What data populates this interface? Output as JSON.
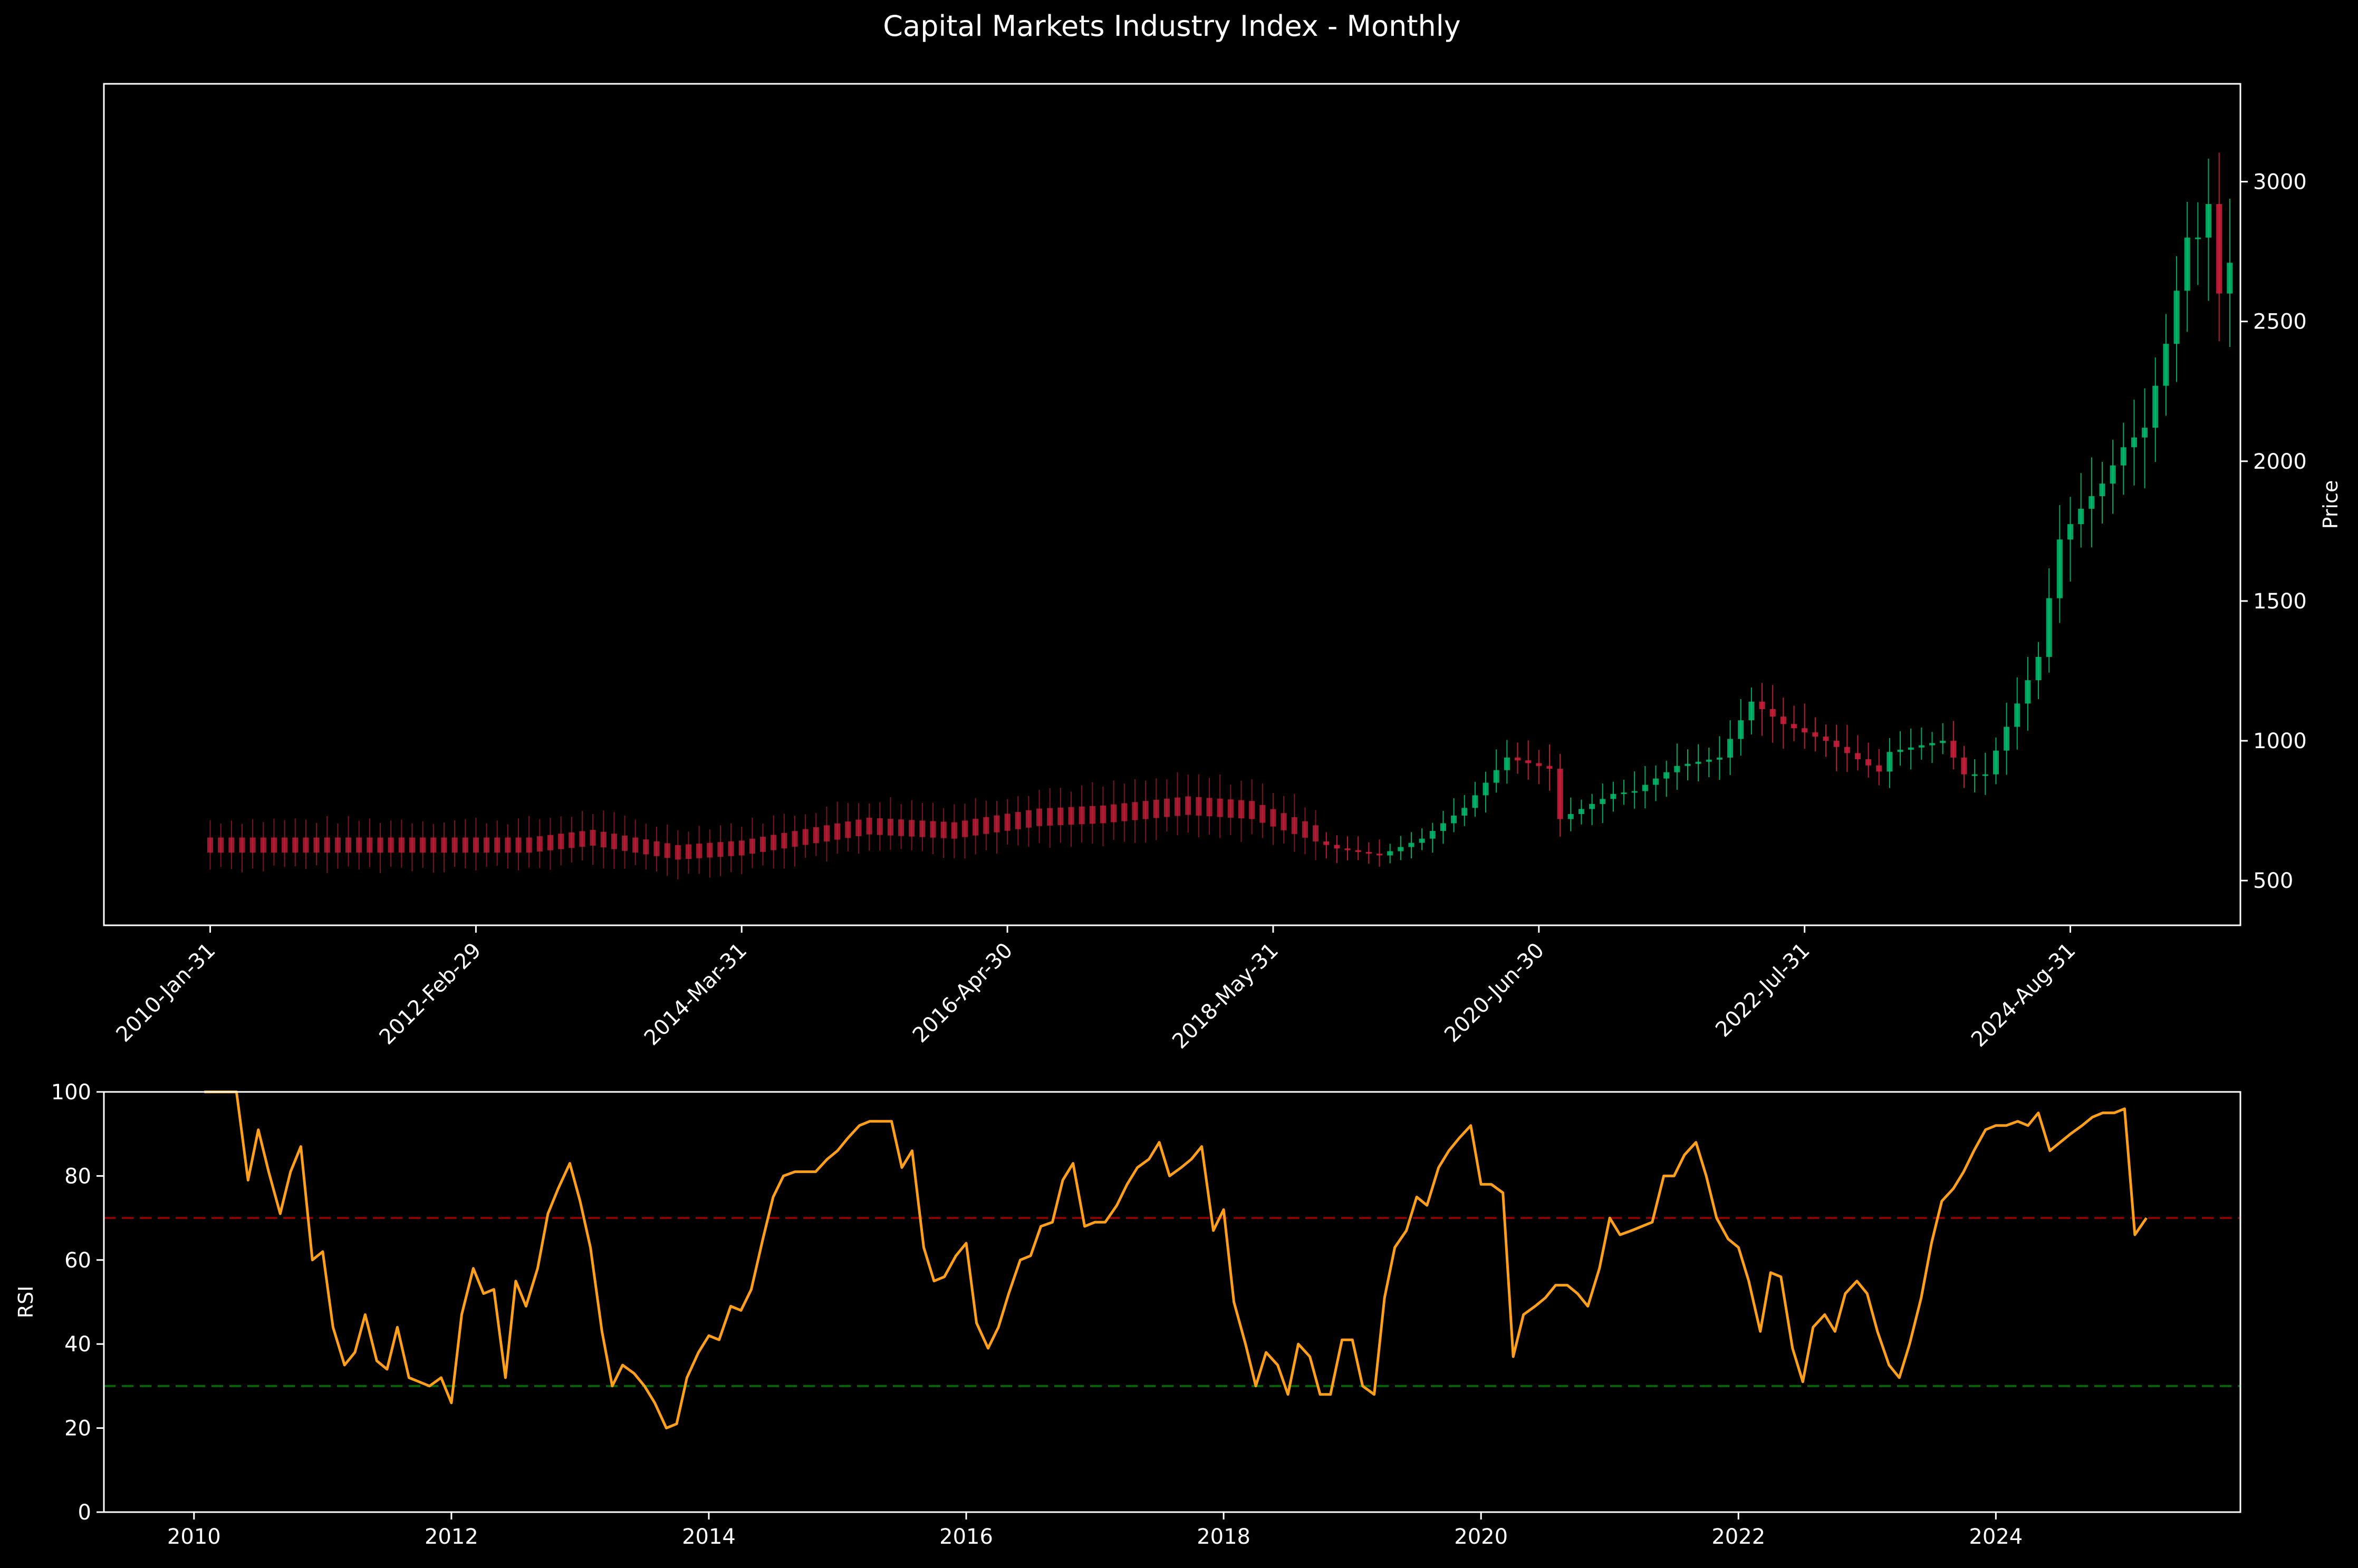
{
  "title": "Capital Markets Industry Index - Monthly",
  "colors": {
    "background": "#000000",
    "foreground": "#ffffff",
    "up": "#00bf6f",
    "down": "#d0203c",
    "rsi_line": "#ff9f1a",
    "overbought": "#8b0000",
    "oversold": "#006400"
  },
  "chart_data": [
    {
      "type": "candlestick",
      "ylabel": "Price",
      "y_axis_side": "right",
      "ylim": [
        340,
        3350
      ],
      "yticks": [
        500,
        1000,
        1500,
        2000,
        2500,
        3000
      ],
      "xticks": [
        "2010-Jan-31",
        "2012-Feb-29",
        "2014-Mar-31",
        "2016-Apr-30",
        "2018-May-31",
        "2020-Jun-30",
        "2022-Jul-31",
        "2024-Aug-31"
      ],
      "xtick_positions": [
        0,
        25,
        50,
        75,
        100,
        125,
        150,
        175
      ],
      "x_range": [
        -10,
        191
      ],
      "xtick_rotation": 45,
      "anchors": [
        {
          "x": 0,
          "close": 600
        },
        {
          "x": 11,
          "close": 600
        },
        {
          "x": 16,
          "close": 600
        },
        {
          "x": 25,
          "close": 600
        },
        {
          "x": 30,
          "close": 600
        },
        {
          "x": 36,
          "close": 625
        },
        {
          "x": 40,
          "close": 600
        },
        {
          "x": 44,
          "close": 575
        },
        {
          "x": 50,
          "close": 590
        },
        {
          "x": 54,
          "close": 615
        },
        {
          "x": 62,
          "close": 665
        },
        {
          "x": 70,
          "close": 650
        },
        {
          "x": 78,
          "close": 695
        },
        {
          "x": 84,
          "close": 705
        },
        {
          "x": 92,
          "close": 735
        },
        {
          "x": 98,
          "close": 720
        },
        {
          "x": 104,
          "close": 640
        },
        {
          "x": 106,
          "close": 615
        },
        {
          "x": 110,
          "close": 590
        },
        {
          "x": 114,
          "close": 650
        },
        {
          "x": 118,
          "close": 760
        },
        {
          "x": 122,
          "close": 940
        },
        {
          "x": 126,
          "close": 900
        },
        {
          "x": 127,
          "close": 720
        },
        {
          "x": 132,
          "close": 810
        },
        {
          "x": 134,
          "close": 820
        },
        {
          "x": 138,
          "close": 910
        },
        {
          "x": 142,
          "close": 940
        },
        {
          "x": 145,
          "close": 1140
        },
        {
          "x": 148,
          "close": 1060
        },
        {
          "x": 152,
          "close": 1000
        },
        {
          "x": 157,
          "close": 890
        },
        {
          "x": 158,
          "close": 960
        },
        {
          "x": 163,
          "close": 1000
        },
        {
          "x": 165,
          "close": 880
        },
        {
          "x": 167,
          "close": 880
        },
        {
          "x": 169,
          "close": 1050
        },
        {
          "x": 172,
          "close": 1300
        },
        {
          "x": 174,
          "close": 1720
        },
        {
          "x": 176,
          "close": 1830
        },
        {
          "x": 178,
          "close": 1920
        },
        {
          "x": 180,
          "close": 2050
        },
        {
          "x": 182,
          "close": 2120
        },
        {
          "x": 184,
          "close": 2420
        },
        {
          "x": 186,
          "close": 2800
        },
        {
          "x": 187,
          "close": 2800
        },
        {
          "x": 188,
          "close": 2920
        },
        {
          "x": 189,
          "close": 2600
        },
        {
          "x": 190,
          "close": 2710
        }
      ],
      "down_wick_segments": [
        [
          0,
          104
        ]
      ]
    },
    {
      "type": "line",
      "ylabel": "RSI",
      "ylim": [
        0,
        100
      ],
      "yticks": [
        0,
        20,
        40,
        60,
        80,
        100
      ],
      "xticks": [
        "2010",
        "2012",
        "2014",
        "2016",
        "2018",
        "2020",
        "2022",
        "2024"
      ],
      "x_range": [
        2009.3,
        2025.9
      ],
      "hlines": [
        {
          "y": 70,
          "color": "overbought"
        },
        {
          "y": 30,
          "color": "oversold"
        }
      ],
      "x": [
        2010.08,
        2010.25,
        2010.33,
        2010.42,
        2010.5,
        2010.58,
        2010.67,
        2010.75,
        2010.83,
        2010.92,
        2011.0,
        2011.08,
        2011.17,
        2011.25,
        2011.33,
        2011.42,
        2011.5,
        2011.58,
        2011.67,
        2011.75,
        2011.83,
        2011.92,
        2012.0,
        2012.08,
        2012.17,
        2012.25,
        2012.33,
        2012.42,
        2012.5,
        2012.58,
        2012.67,
        2012.75,
        2012.83,
        2012.92,
        2013.0,
        2013.08,
        2013.17,
        2013.25,
        2013.33,
        2013.42,
        2013.5,
        2013.58,
        2013.67,
        2013.75,
        2013.83,
        2013.92,
        2014.0,
        2014.08,
        2014.17,
        2014.25,
        2014.33,
        2014.42,
        2014.5,
        2014.58,
        2014.67,
        2014.75,
        2014.83,
        2014.92,
        2015.0,
        2015.08,
        2015.17,
        2015.25,
        2015.33,
        2015.42,
        2015.5,
        2015.58,
        2015.67,
        2015.75,
        2015.83,
        2015.92,
        2016.0,
        2016.08,
        2016.17,
        2016.25,
        2016.33,
        2016.42,
        2016.5,
        2016.58,
        2016.67,
        2016.75,
        2016.83,
        2016.92,
        2017.0,
        2017.08,
        2017.17,
        2017.25,
        2017.33,
        2017.42,
        2017.5,
        2017.58,
        2017.67,
        2017.75,
        2017.83,
        2017.92,
        2018.0,
        2018.08,
        2018.17,
        2018.25,
        2018.33,
        2018.42,
        2018.5,
        2018.58,
        2018.67,
        2018.75,
        2018.83,
        2018.92,
        2019.0,
        2019.08,
        2019.17,
        2019.25,
        2019.33,
        2019.42,
        2019.5,
        2019.58,
        2019.67,
        2019.75,
        2019.83,
        2019.92,
        2020.0,
        2020.08,
        2020.17,
        2020.25,
        2020.33,
        2020.42,
        2020.5,
        2020.58,
        2020.67,
        2020.75,
        2020.83,
        2020.92,
        2021.0,
        2021.08,
        2021.17,
        2021.25,
        2021.33,
        2021.42,
        2021.5,
        2021.58,
        2021.67,
        2021.75,
        2021.83,
        2021.92,
        2022.0,
        2022.08,
        2022.17,
        2022.25,
        2022.33,
        2022.42,
        2022.5,
        2022.58,
        2022.67,
        2022.75,
        2022.83,
        2022.92,
        2023.0,
        2023.08,
        2023.17,
        2023.25,
        2023.33,
        2023.42,
        2023.5,
        2023.58,
        2023.67,
        2023.75,
        2023.83,
        2023.92,
        2024.0,
        2024.08,
        2024.17,
        2024.25,
        2024.33,
        2024.42,
        2024.5,
        2024.58,
        2024.67,
        2024.75,
        2024.83,
        2024.92,
        2025.0,
        2025.08,
        2025.17
      ],
      "values": [
        100,
        100,
        100,
        79,
        91,
        81,
        71,
        81,
        87,
        60,
        62,
        44,
        35,
        38,
        47,
        36,
        34,
        44,
        32,
        31,
        30,
        32,
        26,
        47,
        58,
        52,
        53,
        32,
        55,
        49,
        58,
        71,
        77,
        83,
        74,
        63,
        43,
        30,
        35,
        33,
        30,
        26,
        20,
        21,
        32,
        38,
        42,
        41,
        49,
        48,
        53,
        65,
        75,
        80,
        81,
        81,
        81,
        84,
        86,
        89,
        92,
        93,
        93,
        93,
        82,
        86,
        63,
        55,
        56,
        61,
        64,
        45,
        39,
        44,
        52,
        60,
        61,
        68,
        69,
        79,
        83,
        68,
        69,
        69,
        73,
        78,
        82,
        84,
        88,
        80,
        82,
        84,
        87,
        67,
        72,
        50,
        40,
        30,
        38,
        35,
        28,
        40,
        37,
        28,
        28,
        41,
        41,
        30,
        28,
        51,
        63,
        67,
        75,
        73,
        82,
        86,
        89,
        92,
        78,
        78,
        76,
        37,
        47,
        49,
        51,
        54,
        54,
        52,
        49,
        58,
        70,
        66,
        67,
        68,
        69,
        80,
        80,
        85,
        88,
        80,
        70,
        65,
        63,
        55,
        43,
        57,
        56,
        39,
        31,
        44,
        47,
        43,
        52,
        55,
        52,
        43,
        35,
        32,
        40,
        51,
        64,
        74,
        77,
        81,
        86,
        91,
        92,
        92,
        93,
        92,
        95,
        86,
        88,
        90,
        92,
        94,
        95,
        95,
        96,
        66,
        70
      ]
    }
  ]
}
